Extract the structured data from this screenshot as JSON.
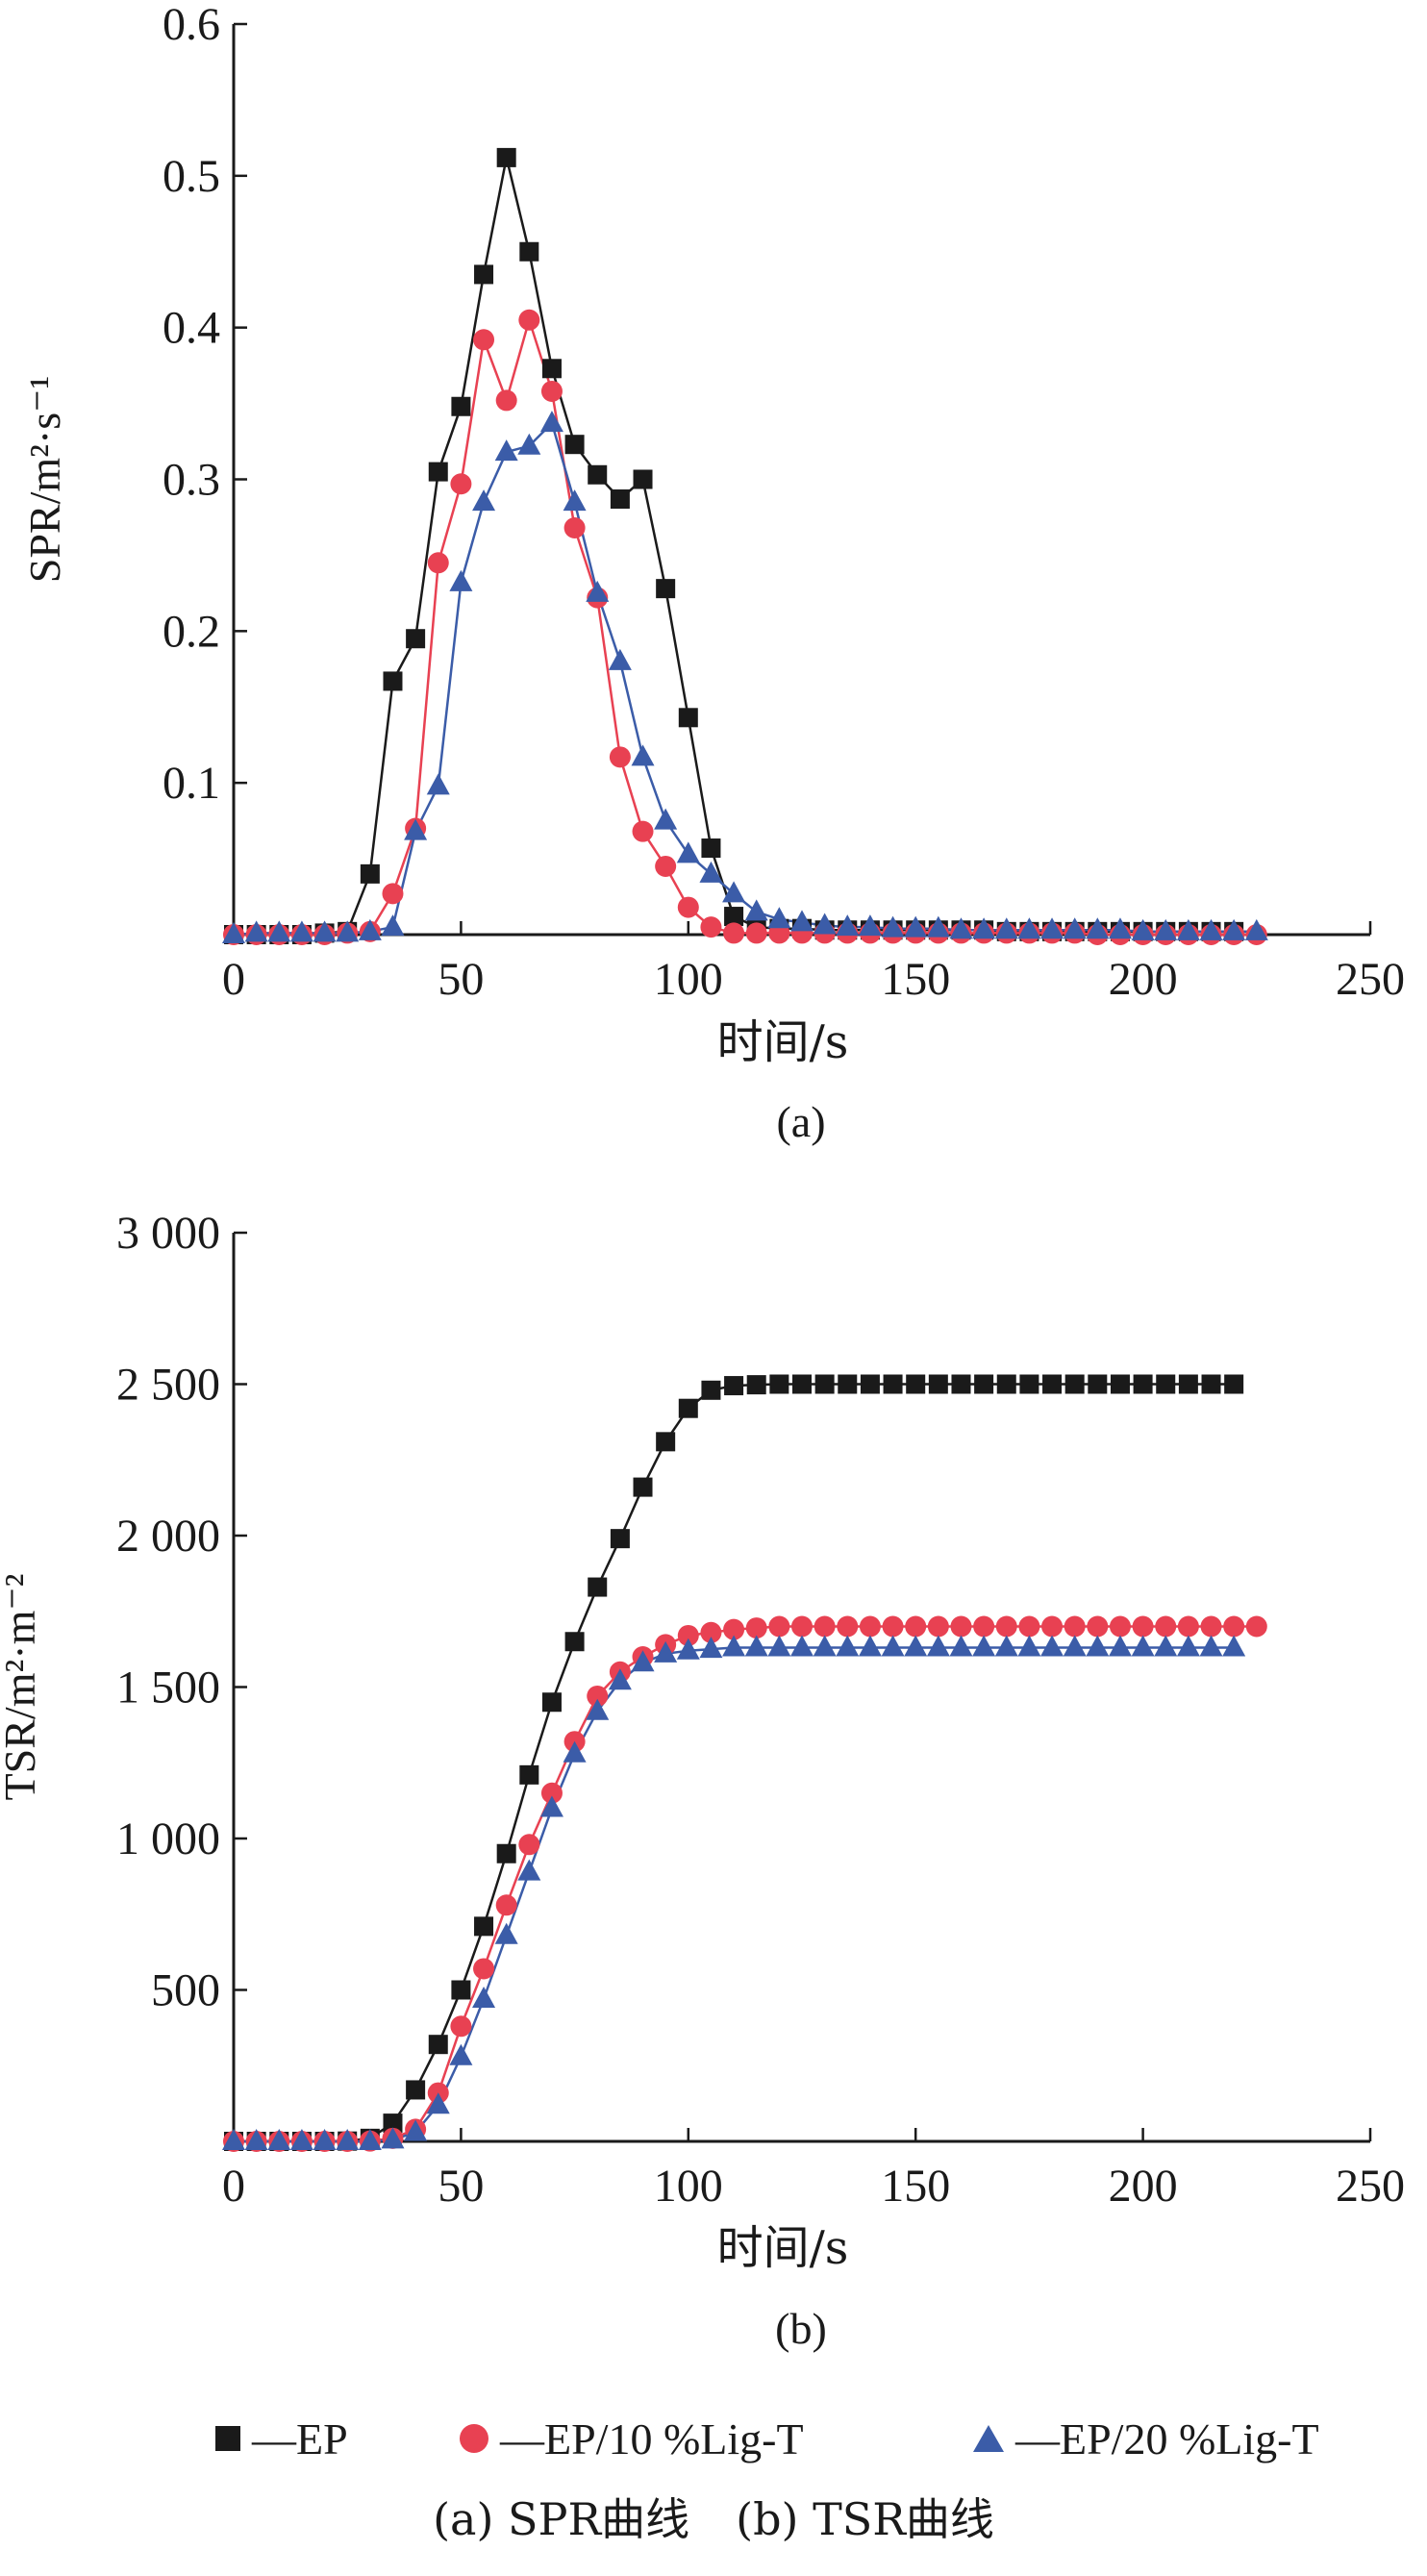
{
  "colors": {
    "EP": "#1a1a1a",
    "EP10": "#e84152",
    "EP20": "#3b5ca8",
    "axis": "#1a1a1a"
  },
  "chart_data": [
    {
      "type": "line",
      "panel_label": "(a)",
      "xlabel": "时间/s",
      "ylabel": "SPR/m²·s⁻¹",
      "xlim": [
        0,
        250
      ],
      "ylim": [
        0,
        0.6
      ],
      "xticks": [
        0,
        50,
        100,
        150,
        200,
        250
      ],
      "xtick_labels": [
        "0",
        "50",
        "100",
        "150",
        "200",
        "250"
      ],
      "yticks": [
        0.1,
        0.2,
        0.3,
        0.4,
        0.5,
        0.6
      ],
      "ytick_labels": [
        "0.1",
        "0.2",
        "0.3",
        "0.4",
        "0.5",
        "0.6"
      ],
      "grid": false,
      "series": [
        {
          "name": "—EP",
          "marker": "square",
          "color": "#1a1a1a",
          "x": [
            0,
            5,
            10,
            15,
            20,
            25,
            30,
            35,
            40,
            45,
            50,
            55,
            60,
            65,
            70,
            75,
            80,
            85,
            90,
            95,
            100,
            105,
            110,
            115,
            120,
            125,
            130,
            135,
            140,
            145,
            150,
            155,
            160,
            165,
            170,
            175,
            180,
            185,
            190,
            195,
            200,
            205,
            210,
            215,
            220
          ],
          "y": [
            0,
            0,
            0,
            0,
            0.001,
            0.002,
            0.04,
            0.167,
            0.195,
            0.305,
            0.348,
            0.435,
            0.512,
            0.45,
            0.373,
            0.323,
            0.303,
            0.287,
            0.3,
            0.228,
            0.143,
            0.057,
            0.012,
            0.005,
            0.004,
            0.004,
            0.003,
            0.003,
            0.003,
            0.003,
            0.003,
            0.003,
            0.003,
            0.003,
            0.002,
            0.002,
            0.002,
            0.002,
            0.002,
            0.002,
            0.002,
            0.002,
            0.002,
            0.002,
            0.002
          ]
        },
        {
          "name": "—EP/10 %Lig-T",
          "marker": "circle",
          "color": "#e84152",
          "x": [
            0,
            5,
            10,
            15,
            20,
            25,
            30,
            35,
            40,
            45,
            50,
            55,
            60,
            65,
            70,
            75,
            80,
            85,
            90,
            95,
            100,
            105,
            110,
            115,
            120,
            125,
            130,
            135,
            140,
            145,
            150,
            155,
            160,
            165,
            170,
            175,
            180,
            185,
            190,
            195,
            200,
            205,
            210,
            215,
            220,
            225
          ],
          "y": [
            0,
            0,
            0,
            0,
            0,
            0.001,
            0.002,
            0.027,
            0.07,
            0.245,
            0.297,
            0.392,
            0.352,
            0.405,
            0.358,
            0.268,
            0.222,
            0.117,
            0.068,
            0.045,
            0.018,
            0.005,
            0.001,
            0.001,
            0.001,
            0.001,
            0.001,
            0.001,
            0.001,
            0.001,
            0.001,
            0.001,
            0.001,
            0.001,
            0.001,
            0.001,
            0.001,
            0.001,
            0,
            0,
            0,
            0,
            0,
            0,
            0,
            0
          ]
        },
        {
          "name": "—EP/20 %Lig-T",
          "marker": "triangle",
          "color": "#3b5ca8",
          "x": [
            0,
            5,
            10,
            15,
            20,
            25,
            30,
            35,
            40,
            45,
            50,
            55,
            60,
            65,
            70,
            75,
            80,
            85,
            90,
            95,
            100,
            105,
            110,
            115,
            120,
            125,
            130,
            135,
            140,
            145,
            150,
            155,
            160,
            165,
            170,
            175,
            180,
            185,
            190,
            195,
            200,
            205,
            210,
            215,
            220,
            225
          ],
          "y": [
            0,
            0.001,
            0.001,
            0.001,
            0.001,
            0.001,
            0.002,
            0.005,
            0.068,
            0.098,
            0.232,
            0.285,
            0.318,
            0.322,
            0.337,
            0.285,
            0.225,
            0.18,
            0.117,
            0.075,
            0.053,
            0.04,
            0.027,
            0.015,
            0.01,
            0.008,
            0.006,
            0.005,
            0.005,
            0.004,
            0.004,
            0.004,
            0.003,
            0.003,
            0.003,
            0.003,
            0.003,
            0.003,
            0.003,
            0.003,
            0.002,
            0.002,
            0.002,
            0.002,
            0.002,
            0.002
          ]
        }
      ]
    },
    {
      "type": "line",
      "panel_label": "(b)",
      "xlabel": "时间/s",
      "ylabel": "TSR/m²·m⁻²",
      "xlim": [
        0,
        250
      ],
      "ylim": [
        0,
        3000
      ],
      "xticks": [
        0,
        50,
        100,
        150,
        200,
        250
      ],
      "xtick_labels": [
        "0",
        "50",
        "100",
        "150",
        "200",
        "250"
      ],
      "yticks": [
        500,
        1000,
        1500,
        2000,
        2500,
        3000
      ],
      "ytick_labels": [
        "500",
        "1 000",
        "1 500",
        "2 000",
        "2 500",
        "3 000"
      ],
      "grid": false,
      "series": [
        {
          "name": "—EP",
          "marker": "square",
          "color": "#1a1a1a",
          "x": [
            0,
            5,
            10,
            15,
            20,
            25,
            30,
            35,
            40,
            45,
            50,
            55,
            60,
            65,
            70,
            75,
            80,
            85,
            90,
            95,
            100,
            105,
            110,
            115,
            120,
            125,
            130,
            135,
            140,
            145,
            150,
            155,
            160,
            165,
            170,
            175,
            180,
            185,
            190,
            195,
            200,
            205,
            210,
            215,
            220
          ],
          "y": [
            0,
            0,
            0,
            0,
            0,
            1,
            10,
            60,
            170,
            320,
            500,
            710,
            950,
            1210,
            1450,
            1650,
            1830,
            1990,
            2160,
            2310,
            2420,
            2480,
            2495,
            2498,
            2500,
            2500,
            2500,
            2500,
            2500,
            2500,
            2500,
            2500,
            2500,
            2500,
            2500,
            2500,
            2500,
            2500,
            2500,
            2500,
            2500,
            2500,
            2500,
            2500,
            2500
          ]
        },
        {
          "name": "—EP/10 %Lig-T",
          "marker": "circle",
          "color": "#e84152",
          "x": [
            0,
            5,
            10,
            15,
            20,
            25,
            30,
            35,
            40,
            45,
            50,
            55,
            60,
            65,
            70,
            75,
            80,
            85,
            90,
            95,
            100,
            105,
            110,
            115,
            120,
            125,
            130,
            135,
            140,
            145,
            150,
            155,
            160,
            165,
            170,
            175,
            180,
            185,
            190,
            195,
            200,
            205,
            210,
            215,
            220,
            225
          ],
          "y": [
            0,
            0,
            0,
            0,
            0,
            0,
            1,
            10,
            40,
            160,
            380,
            570,
            780,
            980,
            1150,
            1320,
            1470,
            1550,
            1600,
            1640,
            1670,
            1680,
            1690,
            1695,
            1700,
            1700,
            1700,
            1700,
            1700,
            1700,
            1700,
            1700,
            1700,
            1700,
            1700,
            1700,
            1700,
            1700,
            1700,
            1700,
            1700,
            1700,
            1700,
            1700,
            1700,
            1700
          ]
        },
        {
          "name": "—EP/20 %Lig-T",
          "marker": "triangle",
          "color": "#3b5ca8",
          "x": [
            0,
            5,
            10,
            15,
            20,
            25,
            30,
            35,
            40,
            45,
            50,
            55,
            60,
            65,
            70,
            75,
            80,
            85,
            90,
            95,
            100,
            105,
            110,
            115,
            120,
            125,
            130,
            135,
            140,
            145,
            150,
            155,
            160,
            165,
            170,
            175,
            180,
            185,
            190,
            195,
            200,
            205,
            210,
            215,
            220
          ],
          "y": [
            0,
            0,
            0,
            0,
            0,
            0,
            0,
            5,
            30,
            120,
            280,
            470,
            680,
            890,
            1100,
            1280,
            1420,
            1520,
            1580,
            1610,
            1620,
            1625,
            1630,
            1630,
            1630,
            1630,
            1630,
            1630,
            1630,
            1630,
            1630,
            1630,
            1630,
            1630,
            1630,
            1630,
            1630,
            1630,
            1630,
            1630,
            1630,
            1630,
            1630,
            1630,
            1630
          ]
        }
      ]
    }
  ],
  "legend": [
    {
      "label": "—EP",
      "marker": "square"
    },
    {
      "label": "—EP/10 %Lig-T",
      "marker": "circle"
    },
    {
      "label": "—EP/20 %Lig-T",
      "marker": "triangle"
    }
  ],
  "caption": {
    "a": "(a) SPR曲线",
    "b": "(b) TSR曲线"
  }
}
